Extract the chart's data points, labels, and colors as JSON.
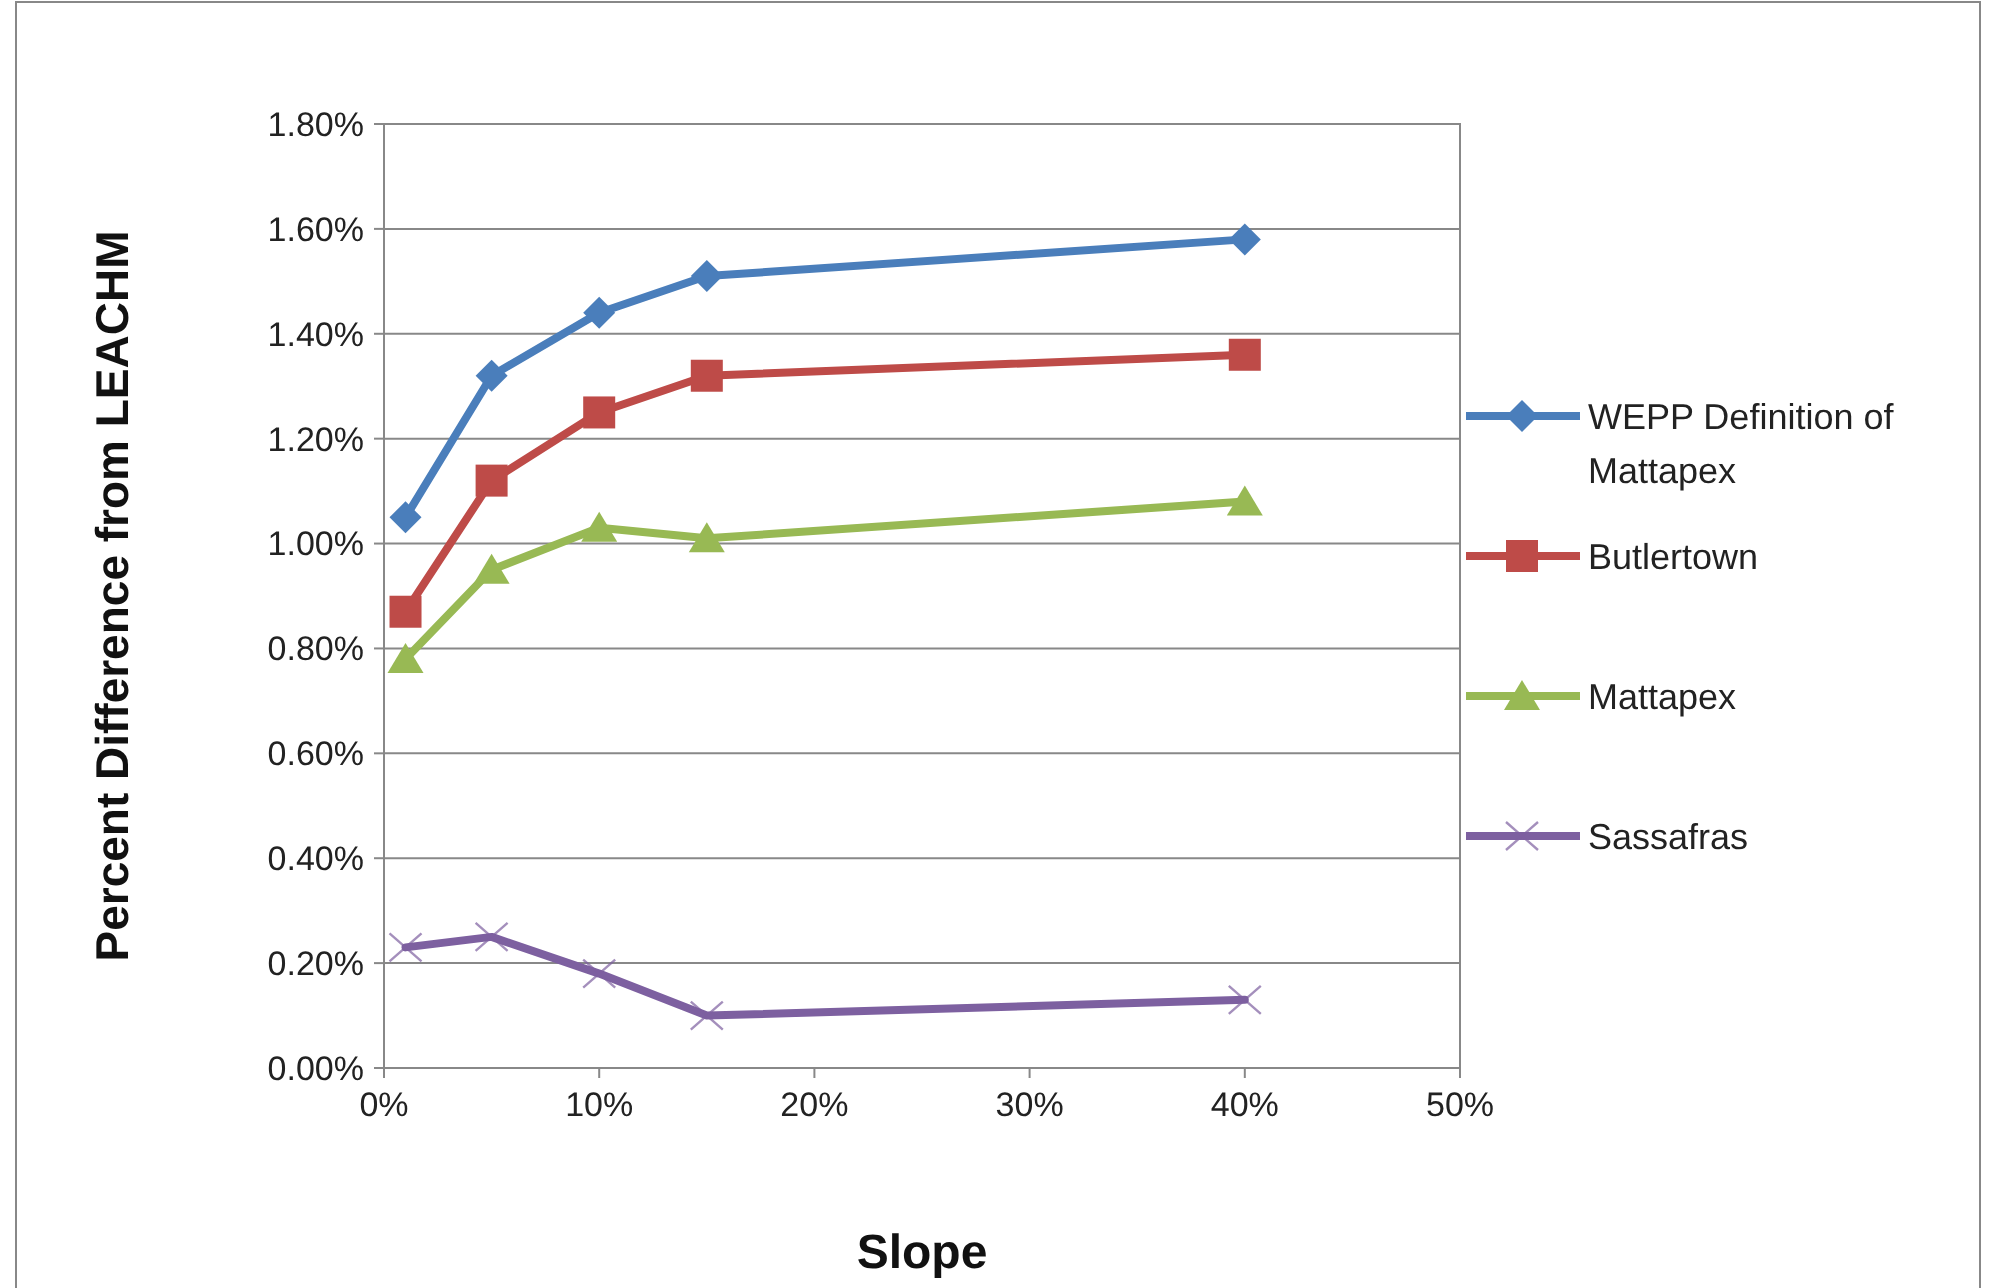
{
  "chart_data": {
    "type": "line",
    "xlabel": "Slope",
    "ylabel": "Percent Difference from LEACHM",
    "x": [
      1,
      5,
      10,
      15,
      40
    ],
    "xlim": [
      0,
      50
    ],
    "xticks": [
      {
        "value": 0,
        "label": "0%"
      },
      {
        "value": 10,
        "label": "10%"
      },
      {
        "value": 20,
        "label": "20%"
      },
      {
        "value": 30,
        "label": "30%"
      },
      {
        "value": 40,
        "label": "40%"
      },
      {
        "value": 50,
        "label": "50%"
      }
    ],
    "ylim": [
      0,
      1.8
    ],
    "yticks": [
      {
        "value": 0,
        "label": "0.00%"
      },
      {
        "value": 0.2,
        "label": "0.20%"
      },
      {
        "value": 0.4,
        "label": "0.40%"
      },
      {
        "value": 0.6,
        "label": "0.60%"
      },
      {
        "value": 0.8,
        "label": "0.80%"
      },
      {
        "value": 1.0,
        "label": "1.00%"
      },
      {
        "value": 1.2,
        "label": "1.20%"
      },
      {
        "value": 1.4,
        "label": "1.40%"
      },
      {
        "value": 1.6,
        "label": "1.60%"
      },
      {
        "value": 1.8,
        "label": "1.80%"
      }
    ],
    "grid": "y",
    "legend": "right",
    "series": [
      {
        "name": "WEPP Definition of Mattapex",
        "color": "#4a7ebb",
        "marker": "diamond",
        "values": [
          1.05,
          1.32,
          1.44,
          1.51,
          1.58
        ]
      },
      {
        "name": "Butlertown",
        "color": "#be4b48",
        "marker": "square",
        "values": [
          0.87,
          1.12,
          1.25,
          1.32,
          1.36
        ]
      },
      {
        "name": "Mattapex",
        "color": "#98b954",
        "marker": "triangle",
        "values": [
          0.78,
          0.95,
          1.03,
          1.01,
          1.08
        ]
      },
      {
        "name": "Sassafras",
        "color": "#7d60a0",
        "marker": "cross",
        "values": [
          0.23,
          0.25,
          0.18,
          0.1,
          0.13
        ]
      }
    ]
  }
}
